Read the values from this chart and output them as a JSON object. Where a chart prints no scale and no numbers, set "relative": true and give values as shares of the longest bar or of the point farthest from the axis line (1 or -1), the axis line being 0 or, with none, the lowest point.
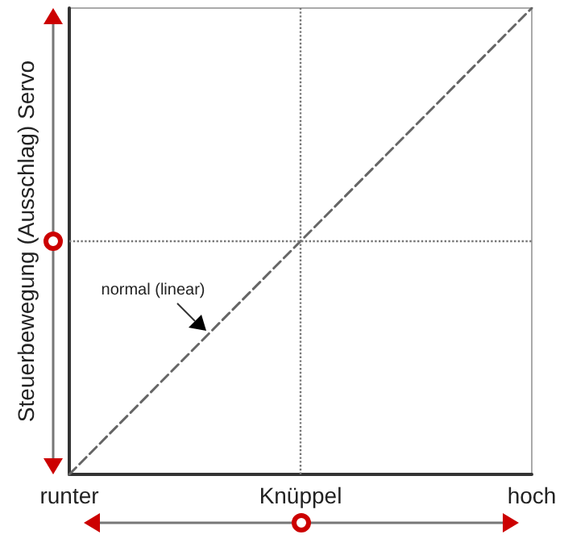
{
  "chart_data": {
    "type": "line",
    "relative": true,
    "ylabel": "Steuerbewegung (Ausschlag) Servo",
    "categories": [
      "runter",
      "Knüppel",
      "hoch"
    ],
    "series": [
      {
        "color": "#666666",
        "values": [
          0,
          0.5,
          1
        ]
      }
    ],
    "line_style": "dashed",
    "marker": "none",
    "grid": false,
    "ref_lines": [
      {
        "axis": "x",
        "value": "Knüppel",
        "color": "#777777",
        "line_style": "dotted"
      },
      {
        "axis": "y",
        "value": 0.5,
        "color": "#777777",
        "line_style": "dotted"
      }
    ],
    "annotations": [
      "normal (linear)"
    ]
  }
}
